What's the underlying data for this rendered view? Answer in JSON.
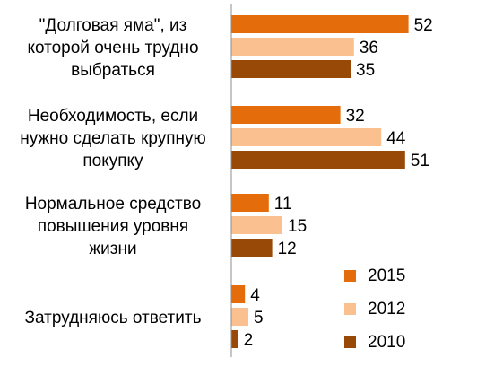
{
  "chart_data": {
    "type": "bar",
    "orientation": "horizontal",
    "categories": [
      [
        "\"Долговая яма\", из",
        "которой очень трудно",
        "выбраться"
      ],
      [
        "Необходимость, если",
        "нужно сделать крупную",
        "покупку"
      ],
      [
        "Нормальное средство",
        "повышения уровня",
        "жизни"
      ],
      [
        "Затрудняюсь ответить"
      ]
    ],
    "series": [
      {
        "name": "2015",
        "color": "#E46C0A",
        "values": [
          52,
          32,
          11,
          4
        ]
      },
      {
        "name": "2012",
        "color": "#FAC090",
        "values": [
          36,
          44,
          15,
          5
        ]
      },
      {
        "name": "2010",
        "color": "#984807",
        "values": [
          35,
          51,
          12,
          2
        ]
      }
    ],
    "data_labels": true,
    "xlim": [
      0,
      60
    ],
    "grid": false,
    "legend_position": "bottom-right"
  }
}
